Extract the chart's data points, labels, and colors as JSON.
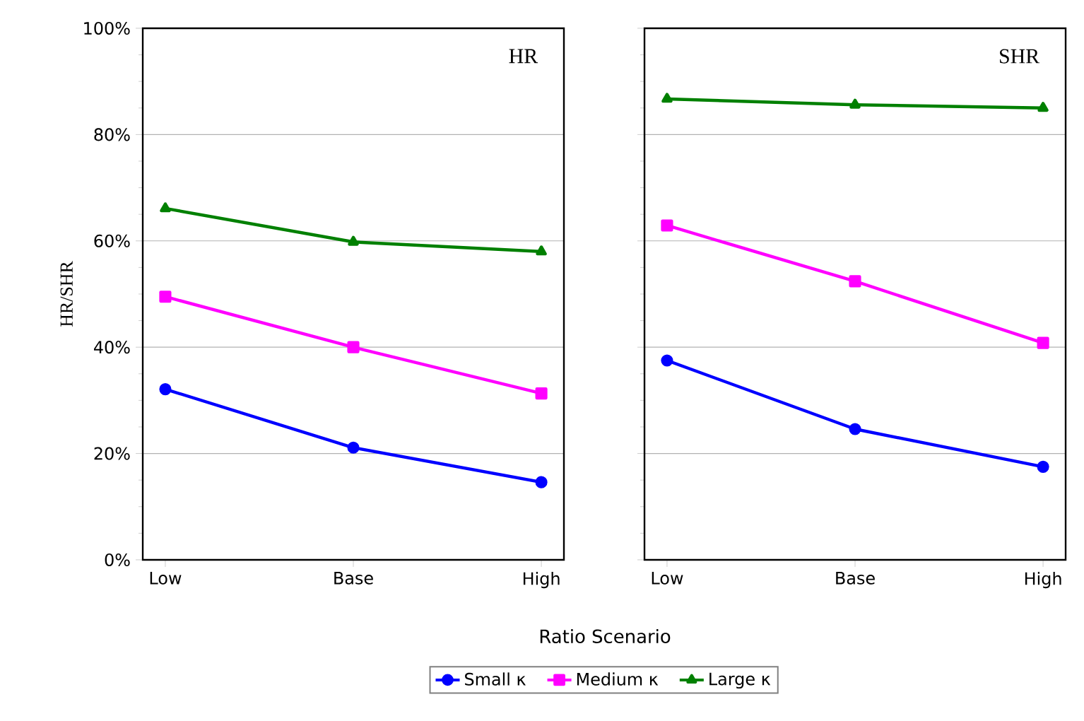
{
  "chart_data": [
    {
      "type": "line",
      "title": "HR",
      "xlabel": "Ratio Scenario",
      "ylabel": "HR/SHR",
      "categories": [
        "Low",
        "Base",
        "High"
      ],
      "series": [
        {
          "name": "Small κ",
          "color": "#0000ff",
          "marker": "circle",
          "values": [
            32.1,
            21.1,
            14.6
          ]
        },
        {
          "name": "Medium κ",
          "color": "#ff00ff",
          "marker": "square",
          "values": [
            49.5,
            40.0,
            31.3
          ]
        },
        {
          "name": "Large κ",
          "color": "#008000",
          "marker": "triangle",
          "values": [
            66.1,
            59.8,
            58.0
          ]
        }
      ],
      "ylim": [
        0,
        100
      ],
      "yticks": [
        {
          "value": 0,
          "label": "0%"
        },
        {
          "value": 20,
          "label": "20%"
        },
        {
          "value": 40,
          "label": "40%"
        },
        {
          "value": 60,
          "label": "60%"
        },
        {
          "value": 80,
          "label": "80%"
        },
        {
          "value": 100,
          "label": "100%"
        }
      ],
      "grid": "y",
      "legend": "bottom"
    },
    {
      "type": "line",
      "title": "SHR",
      "categories": [
        "Low",
        "Base",
        "High"
      ],
      "series": [
        {
          "color": "#0000ff",
          "marker": "circle",
          "values": [
            37.5,
            24.6,
            17.5
          ]
        },
        {
          "color": "#ff00ff",
          "marker": "square",
          "values": [
            62.9,
            52.4,
            40.8
          ]
        },
        {
          "color": "#008000",
          "marker": "triangle",
          "values": [
            86.7,
            85.6,
            85.0
          ]
        }
      ],
      "ylim": [
        0,
        100
      ],
      "yticks": [
        {
          "value": 0,
          "label": null
        },
        {
          "value": 20,
          "label": null
        },
        {
          "value": 40,
          "label": null
        },
        {
          "value": 60,
          "label": null
        },
        {
          "value": 80,
          "label": null
        },
        {
          "value": 100,
          "label": null
        }
      ],
      "grid": "y",
      "tick_labels": "x"
    }
  ]
}
